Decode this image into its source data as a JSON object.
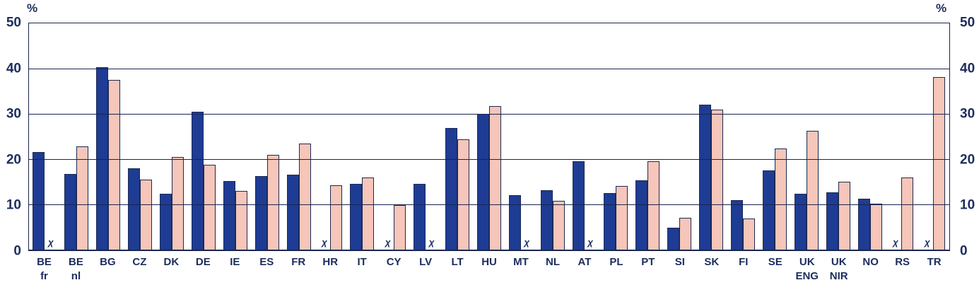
{
  "chart_data": {
    "type": "bar",
    "title": "",
    "unit_label_left": "%",
    "unit_label_right": "%",
    "ylim": [
      0,
      50
    ],
    "yticks": [
      0,
      10,
      20,
      30,
      40,
      50
    ],
    "grid": true,
    "legend": "none",
    "missing_marker": "χ",
    "categories": [
      "BE fr",
      "BE nl",
      "BG",
      "CZ",
      "DK",
      "DE",
      "IE",
      "ES",
      "FR",
      "HR",
      "IT",
      "CY",
      "LV",
      "LT",
      "HU",
      "MT",
      "NL",
      "AT",
      "PL",
      "PT",
      "SI",
      "SK",
      "FI",
      "SE",
      "UK ENG",
      "UK NIR",
      "NO",
      "RS",
      "TR"
    ],
    "category_label_lines": [
      [
        "BE",
        "fr"
      ],
      [
        "BE",
        "nl"
      ],
      [
        "BG"
      ],
      [
        "CZ"
      ],
      [
        "DK"
      ],
      [
        "DE"
      ],
      [
        "IE"
      ],
      [
        "ES"
      ],
      [
        "FR"
      ],
      [
        "HR"
      ],
      [
        "IT"
      ],
      [
        "CY"
      ],
      [
        "LV"
      ],
      [
        "LT"
      ],
      [
        "HU"
      ],
      [
        "MT"
      ],
      [
        "NL"
      ],
      [
        "AT"
      ],
      [
        "PL"
      ],
      [
        "PT"
      ],
      [
        "SI"
      ],
      [
        "SK"
      ],
      [
        "FI"
      ],
      [
        "SE"
      ],
      [
        "UK",
        "ENG"
      ],
      [
        "UK",
        "NIR"
      ],
      [
        "NO"
      ],
      [
        "RS"
      ],
      [
        "TR"
      ]
    ],
    "series": [
      {
        "name": "series-1-dark-blue",
        "color": "#1E3C94",
        "values": [
          21.5,
          16.7,
          40.3,
          17.9,
          12.3,
          30.5,
          15.1,
          16.3,
          16.5,
          null,
          14.5,
          null,
          14.6,
          26.8,
          30.0,
          12.0,
          13.1,
          19.6,
          12.5,
          15.3,
          4.9,
          32.0,
          11.0,
          17.5,
          12.4,
          12.6,
          11.3,
          null,
          null
        ]
      },
      {
        "name": "series-2-light-pink",
        "color": "#F5C6B9",
        "values": [
          null,
          22.8,
          37.5,
          15.5,
          20.4,
          18.8,
          13.0,
          21.0,
          23.5,
          14.2,
          15.9,
          9.9,
          null,
          24.4,
          31.7,
          null,
          10.8,
          null,
          14.0,
          19.6,
          7.0,
          31.0,
          6.9,
          22.4,
          26.2,
          15.0,
          10.2,
          16.0,
          38.2
        ]
      }
    ],
    "colors": {
      "text": "#1C2D5E",
      "gridline": "#1A2550",
      "bar_outline": "#1C2B55",
      "background": "#FFFFFF"
    }
  }
}
